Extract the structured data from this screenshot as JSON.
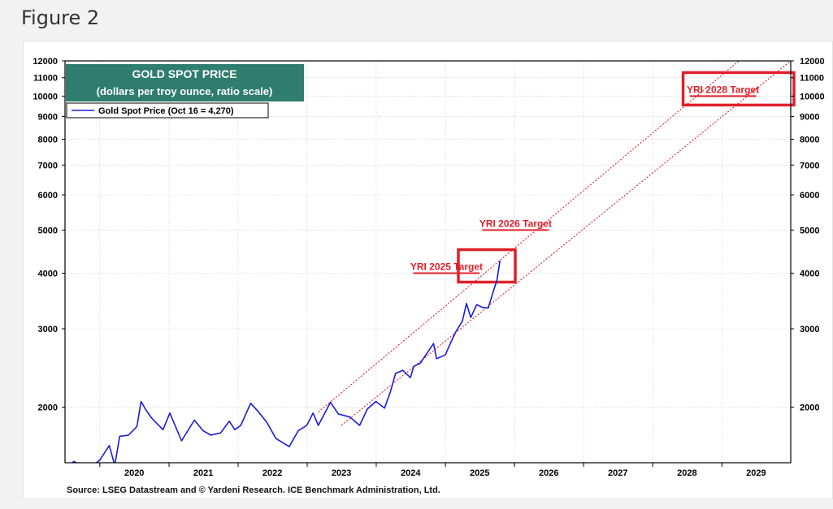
{
  "page": {
    "heading": "Figure 2"
  },
  "chart_data": {
    "type": "line",
    "title": "GOLD SPOT PRICE",
    "subtitle": "(dollars per troy ounce, ratio scale)",
    "title_box_color": "#2e7d6f",
    "y_scale": "log",
    "ylim": [
      1500,
      12000
    ],
    "xlim": [
      "2019-07-01",
      "2029-12-31"
    ],
    "y_ticks": [
      2000,
      3000,
      4000,
      5000,
      6000,
      7000,
      8000,
      9000,
      10000,
      11000,
      12000
    ],
    "x_ticks": [
      "2020",
      "2021",
      "2022",
      "2023",
      "2024",
      "2025",
      "2026",
      "2027",
      "2028",
      "2029"
    ],
    "grid": true,
    "legend_position": "top-left",
    "series": [
      {
        "name": "Gold Spot Price (Oct 16 = 4,270)",
        "color": "#1a1adb",
        "points": [
          [
            "2019-07-01",
            1410
          ],
          [
            "2019-08-15",
            1510
          ],
          [
            "2019-10-01",
            1480
          ],
          [
            "2019-11-15",
            1470
          ],
          [
            "2020-01-01",
            1520
          ],
          [
            "2020-02-20",
            1640
          ],
          [
            "2020-03-20",
            1480
          ],
          [
            "2020-04-15",
            1720
          ],
          [
            "2020-06-01",
            1730
          ],
          [
            "2020-07-15",
            1810
          ],
          [
            "2020-08-06",
            2060
          ],
          [
            "2020-09-01",
            1970
          ],
          [
            "2020-10-01",
            1890
          ],
          [
            "2020-11-30",
            1780
          ],
          [
            "2021-01-05",
            1940
          ],
          [
            "2021-03-08",
            1680
          ],
          [
            "2021-05-15",
            1870
          ],
          [
            "2021-06-30",
            1770
          ],
          [
            "2021-08-10",
            1730
          ],
          [
            "2021-09-30",
            1750
          ],
          [
            "2021-11-15",
            1860
          ],
          [
            "2021-12-15",
            1780
          ],
          [
            "2022-01-15",
            1820
          ],
          [
            "2022-03-08",
            2040
          ],
          [
            "2022-04-15",
            1960
          ],
          [
            "2022-06-01",
            1850
          ],
          [
            "2022-07-20",
            1700
          ],
          [
            "2022-09-28",
            1630
          ],
          [
            "2022-11-15",
            1770
          ],
          [
            "2022-12-30",
            1820
          ],
          [
            "2023-02-01",
            1940
          ],
          [
            "2023-03-01",
            1820
          ],
          [
            "2023-05-04",
            2050
          ],
          [
            "2023-06-15",
            1930
          ],
          [
            "2023-08-15",
            1900
          ],
          [
            "2023-10-05",
            1820
          ],
          [
            "2023-11-15",
            1980
          ],
          [
            "2023-12-30",
            2060
          ],
          [
            "2024-02-14",
            1990
          ],
          [
            "2024-03-15",
            2160
          ],
          [
            "2024-04-12",
            2380
          ],
          [
            "2024-05-20",
            2420
          ],
          [
            "2024-06-30",
            2330
          ],
          [
            "2024-07-17",
            2470
          ],
          [
            "2024-08-20",
            2510
          ],
          [
            "2024-09-30",
            2660
          ],
          [
            "2024-10-30",
            2780
          ],
          [
            "2024-11-15",
            2570
          ],
          [
            "2024-12-31",
            2620
          ],
          [
            "2025-01-30",
            2800
          ],
          [
            "2025-02-24",
            2950
          ],
          [
            "2025-03-31",
            3120
          ],
          [
            "2025-04-22",
            3420
          ],
          [
            "2025-05-15",
            3180
          ],
          [
            "2025-06-15",
            3400
          ],
          [
            "2025-07-15",
            3350
          ],
          [
            "2025-08-15",
            3340
          ],
          [
            "2025-09-10",
            3630
          ],
          [
            "2025-09-30",
            3860
          ],
          [
            "2025-10-16",
            4270
          ]
        ]
      }
    ],
    "channel": {
      "color": "#e0202a",
      "upper": [
        [
          "2023-03-01",
          1950
        ],
        [
          "2029-04-01",
          12000
        ]
      ],
      "lower": [
        [
          "2023-07-01",
          1820
        ],
        [
          "2029-12-31",
          12000
        ]
      ]
    },
    "targets": [
      {
        "label": "YRI 2025 Target",
        "date_start": "2024-07-15",
        "date_end": "2025-07-01",
        "value": 4000,
        "highlight_box": true
      },
      {
        "label": "YRI 2026 Target",
        "date_start": "2025-07-15",
        "date_end": "2026-07-01",
        "value": 5000,
        "highlight_box": false
      },
      {
        "label": "YRI 2028 Target",
        "date_start": "2028-07-15",
        "date_end": "2029-07-01",
        "value": 10000,
        "highlight_box": true
      }
    ],
    "annotation_color": "#e0202a",
    "source": "Source: LSEG Datastream and © Yardeni Research. ICE Benchmark Administration, Ltd."
  }
}
